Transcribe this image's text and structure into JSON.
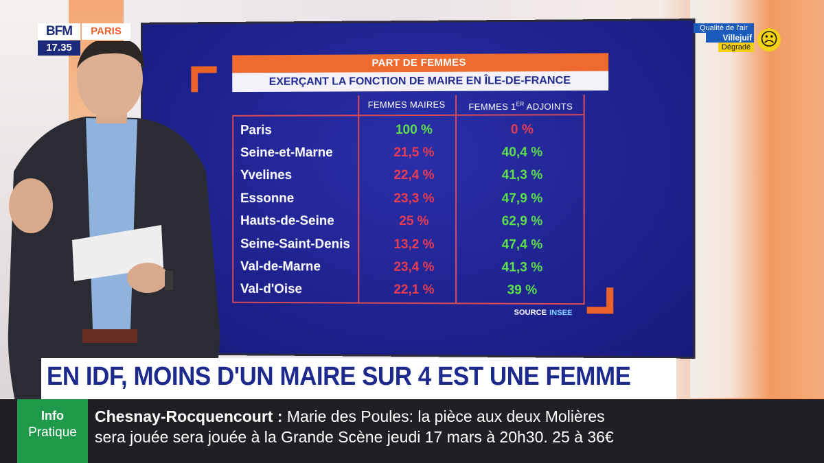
{
  "logo": {
    "brand": "BFM",
    "city": "PARIS",
    "time": "17.35"
  },
  "air_quality": {
    "label": "Qualité de l'air",
    "city": "Villejuif",
    "status": "Dégradé"
  },
  "table": {
    "title_line1": "PART DE FEMMES",
    "title_line2": "EXERÇANT LA FONCTION DE MAIRE EN ÎLE-DE-FRANCE",
    "col1_header": "FEMMES MAIRES",
    "col2_header_main": "FEMMES 1",
    "col2_header_sup": "ER",
    "col2_header_rest": " ADJOINTS",
    "rows": [
      {
        "name": "Paris",
        "maires": "100 %",
        "adjoints": "0 %"
      },
      {
        "name": "Seine-et-Marne",
        "maires": "21,5 %",
        "adjoints": "40,4 %"
      },
      {
        "name": "Yvelines",
        "maires": "22,4 %",
        "adjoints": "41,3 %"
      },
      {
        "name": "Essonne",
        "maires": "23,3 %",
        "adjoints": "47,9 %"
      },
      {
        "name": "Hauts-de-Seine",
        "maires": "25 %",
        "adjoints": "62,9 %"
      },
      {
        "name": "Seine-Saint-Denis",
        "maires": "13,2 %",
        "adjoints": "47,4 %"
      },
      {
        "name": "Val-de-Marne",
        "maires": "23,4 %",
        "adjoints": "41,3 %"
      },
      {
        "name": "Val-d'Oise",
        "maires": "22,1 %",
        "adjoints": "39 %"
      }
    ],
    "source_label": "SOURCE",
    "source_value": "INSEE"
  },
  "headline": "EN IDF, MOINS D'UN MAIRE SUR 4 EST UNE FEMME",
  "ticker": {
    "badge_line1": "Info",
    "badge_line2": "Pratique",
    "place": "Chesnay-Rocquencourt",
    "separator": " : ",
    "text_line1": "Marie des Poules: la pièce aux deux Molières",
    "text_line2": "sera jouée sera jouée à la Grande Scène jeudi 17 mars à 20h30. 25 à 36€"
  },
  "colors": {
    "accent_orange": "#ee6a2e",
    "navy": "#1b2a8c",
    "green_value": "#5ee04a",
    "red_value": "#e83c52",
    "ticker_green": "#1f9a4a"
  }
}
